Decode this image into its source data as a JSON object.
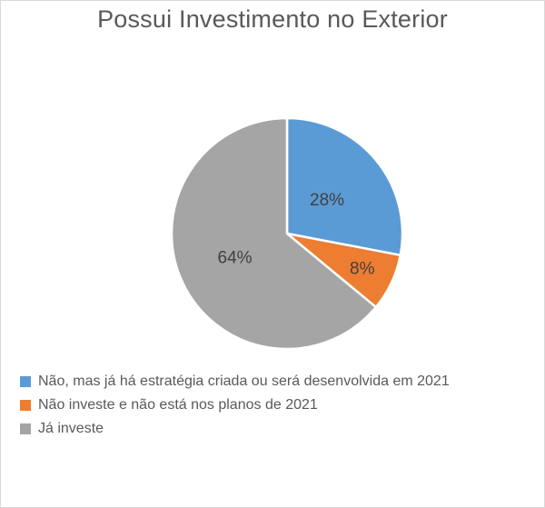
{
  "chart_data": {
    "type": "pie",
    "title": "Possui Investimento no Exterior",
    "slices": [
      {
        "label": "Não, mas já há estratégia criada ou será desenvolvida em 2021",
        "value": 28,
        "display": "28%",
        "color": "#5B9BD5"
      },
      {
        "label": "Não investe e não está nos planos de 2021",
        "value": 8,
        "display": "8%",
        "color": "#ED7D31"
      },
      {
        "label": "Já investe",
        "value": 64,
        "display": "64%",
        "color": "#A5A5A5"
      }
    ],
    "legend_position": "bottom-left"
  }
}
